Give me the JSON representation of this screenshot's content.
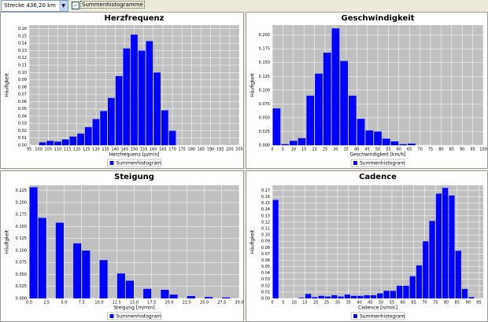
{
  "toolbar": {
    "route_select": "Strecke  436,20 km",
    "checkbox_label": "Summenhistogramme"
  },
  "chart_data": [
    {
      "type": "histogram",
      "title": "Herzfrequenz",
      "x_label": "Herzfrequenz [p/min]",
      "y_label": "Häufigkeit",
      "bins": [
        100,
        104,
        108,
        112,
        116,
        120,
        124,
        128,
        132,
        136,
        140,
        144,
        148,
        152,
        156,
        160,
        164,
        168,
        172
      ],
      "series": [
        {
          "name": "Summenhistogram",
          "color": "#0000ff",
          "values": [
            0.004,
            0.006,
            0.005,
            0.008,
            0.012,
            0.016,
            0.025,
            0.036,
            0.047,
            0.065,
            0.095,
            0.133,
            0.152,
            0.13,
            0.143,
            0.1,
            0.048,
            0.02
          ]
        }
      ],
      "xlim": [
        95,
        205
      ],
      "xticks": [
        95,
        100,
        105,
        110,
        115,
        120,
        125,
        130,
        135,
        140,
        145,
        150,
        155,
        160,
        165,
        170,
        175,
        180,
        185,
        190,
        195,
        200,
        205
      ],
      "ylim": [
        0,
        0.165
      ],
      "yticks": [
        {
          "value": 0,
          "label": "0.00"
        },
        {
          "value": 0.01,
          "label": "0.01"
        },
        {
          "value": 0.02,
          "label": "0.02"
        },
        {
          "value": 0.03,
          "label": "0.03"
        },
        {
          "value": 0.04,
          "label": "0.04"
        },
        {
          "value": 0.05,
          "label": "0.05"
        },
        {
          "value": 0.06,
          "label": "0.06"
        },
        {
          "value": 0.07,
          "label": "0.07"
        },
        {
          "value": 0.08,
          "label": "0.08"
        },
        {
          "value": 0.09,
          "label": "0.09"
        },
        {
          "value": 0.1,
          "label": "0.10"
        },
        {
          "value": 0.11,
          "label": "0.11"
        },
        {
          "value": 0.12,
          "label": "0.12"
        },
        {
          "value": 0.13,
          "label": "0.13"
        },
        {
          "value": 0.14,
          "label": "0.14"
        },
        {
          "value": 0.15,
          "label": "0.15"
        },
        {
          "value": 0.16,
          "label": "0.16"
        }
      ],
      "grid": true
    },
    {
      "type": "histogram",
      "title": "Geschwindigkeit",
      "x_label": "Geschwindigkeit [km/h]",
      "y_label": "Häufigkeit",
      "bins": [
        0,
        4,
        8,
        12,
        16,
        20,
        24,
        28,
        32,
        36,
        40,
        44,
        48,
        52,
        56,
        60,
        64,
        68
      ],
      "series": [
        {
          "name": "Summenhistogram",
          "color": "#0000ff",
          "values": [
            0.067,
            0.002,
            0.008,
            0.013,
            0.09,
            0.13,
            0.168,
            0.212,
            0.153,
            0.09,
            0.048,
            0.027,
            0.025,
            0.012,
            0.007,
            0.002,
            0.003
          ]
        }
      ],
      "xlim": [
        0,
        100
      ],
      "xticks": [
        0,
        5,
        10,
        15,
        20,
        25,
        30,
        35,
        40,
        45,
        50,
        55,
        60,
        65,
        70,
        75,
        80,
        85,
        90,
        95,
        100
      ],
      "ylim": [
        0,
        0.218
      ],
      "yticks": [
        {
          "value": 0,
          "label": "0.000"
        },
        {
          "value": 0.025,
          "label": "0.025"
        },
        {
          "value": 0.05,
          "label": "0.050"
        },
        {
          "value": 0.075,
          "label": "0.075"
        },
        {
          "value": 0.1,
          "label": "0.100"
        },
        {
          "value": 0.125,
          "label": "0.125"
        },
        {
          "value": 0.15,
          "label": "0.150"
        },
        {
          "value": 0.175,
          "label": "0.175"
        },
        {
          "value": 0.2,
          "label": "0.200"
        }
      ],
      "grid": true
    },
    {
      "type": "histogram",
      "title": "Steigung",
      "x_label": "Steigung [m/min]",
      "y_label": "Häufigkeit",
      "bins": [
        0,
        1.25,
        2.5,
        3.75,
        5,
        6.25,
        7.5,
        8.75,
        10,
        11.25,
        12.5,
        13.75,
        15,
        16.25,
        17.5,
        18.75,
        20,
        21.25,
        22.5,
        23.75,
        25,
        26.25,
        27.5,
        28.75
      ],
      "series": [
        {
          "name": "Summenhistogram",
          "color": "#0000ff",
          "values": [
            0.232,
            0.168,
            0,
            0.158,
            0,
            0.115,
            0.1,
            0,
            0.08,
            0,
            0.052,
            0.037,
            0,
            0.02,
            0,
            0.018,
            0.008,
            0,
            0.005,
            0,
            0.003,
            0,
            0.002
          ]
        }
      ],
      "xlim": [
        0,
        30
      ],
      "xticks": [
        {
          "value": 0,
          "label": "0.0"
        },
        {
          "value": 2.5,
          "label": "2.5"
        },
        {
          "value": 5,
          "label": "5.0"
        },
        {
          "value": 7.5,
          "label": "7.5"
        },
        {
          "value": 10,
          "label": "10.0"
        },
        {
          "value": 12.5,
          "label": "12.5"
        },
        {
          "value": 15,
          "label": "15.0"
        },
        {
          "value": 17.5,
          "label": "17.5"
        },
        {
          "value": 20,
          "label": "20.0"
        },
        {
          "value": 22.5,
          "label": "22.5"
        },
        {
          "value": 25,
          "label": "25.0"
        },
        {
          "value": 27.5,
          "label": "27.5"
        },
        {
          "value": 30,
          "label": "30.0"
        }
      ],
      "ylim": [
        0,
        0.236
      ],
      "yticks": [
        {
          "value": 0,
          "label": "0.000"
        },
        {
          "value": 0.025,
          "label": "0.025"
        },
        {
          "value": 0.05,
          "label": "0.050"
        },
        {
          "value": 0.075,
          "label": "0.075"
        },
        {
          "value": 0.1,
          "label": "0.100"
        },
        {
          "value": 0.125,
          "label": "0.125"
        },
        {
          "value": 0.15,
          "label": "0.150"
        },
        {
          "value": 0.175,
          "label": "0.175"
        },
        {
          "value": 0.2,
          "label": "0.200"
        },
        {
          "value": 0.225,
          "label": "0.225"
        }
      ],
      "grid": true
    },
    {
      "type": "histogram",
      "title": "Cadence",
      "x_label": "Cadence [n/min]",
      "y_label": "Häufigkeit",
      "bins": [
        0,
        3,
        6,
        9,
        12,
        15,
        18,
        21,
        24,
        27,
        30,
        33,
        36,
        39,
        42,
        45,
        48,
        51,
        54,
        57,
        60,
        63,
        66,
        69,
        72,
        75,
        78,
        81,
        84,
        87,
        90,
        93
      ],
      "series": [
        {
          "name": "Summenhistogram",
          "color": "#0000ff",
          "values": [
            0.155,
            0,
            0,
            0,
            0.001,
            0.007,
            0.002,
            0.004,
            0.003,
            0.005,
            0.003,
            0.006,
            0.004,
            0.004,
            0.005,
            0.005,
            0.008,
            0.012,
            0.012,
            0.02,
            0.02,
            0.035,
            0.052,
            0.09,
            0.122,
            0.165,
            0.174,
            0.162,
            0.075,
            0.015,
            0.002
          ]
        }
      ],
      "xlim": [
        0,
        97
      ],
      "xticks": [
        0,
        5,
        10,
        15,
        20,
        25,
        30,
        35,
        40,
        45,
        50,
        55,
        60,
        65,
        70,
        75,
        80,
        85,
        90,
        95
      ],
      "ylim": [
        0,
        0.178
      ],
      "yticks": [
        {
          "value": 0,
          "label": "0.00"
        },
        {
          "value": 0.01,
          "label": "0.01"
        },
        {
          "value": 0.02,
          "label": "0.02"
        },
        {
          "value": 0.03,
          "label": "0.03"
        },
        {
          "value": 0.04,
          "label": "0.04"
        },
        {
          "value": 0.05,
          "label": "0.05"
        },
        {
          "value": 0.06,
          "label": "0.06"
        },
        {
          "value": 0.07,
          "label": "0.07"
        },
        {
          "value": 0.08,
          "label": "0.08"
        },
        {
          "value": 0.09,
          "label": "0.09"
        },
        {
          "value": 0.1,
          "label": "0.10"
        },
        {
          "value": 0.11,
          "label": "0.11"
        },
        {
          "value": 0.12,
          "label": "0.12"
        },
        {
          "value": 0.13,
          "label": "0.13"
        },
        {
          "value": 0.14,
          "label": "0.14"
        },
        {
          "value": 0.15,
          "label": "0.15"
        },
        {
          "value": 0.16,
          "label": "0.16"
        },
        {
          "value": 0.17,
          "label": "0.17"
        }
      ],
      "grid": true
    }
  ]
}
